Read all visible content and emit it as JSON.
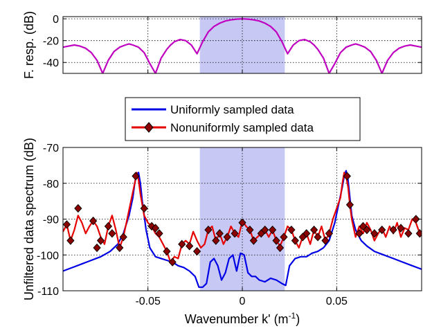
{
  "chart_data": [
    {
      "type": "line",
      "title": "",
      "xlabel": "",
      "ylabel": "F. resp. (dB)",
      "xlim": [
        -0.095,
        0.095
      ],
      "ylim": [
        -50,
        2
      ],
      "x_ticks": [
        -0.05,
        0,
        0.05
      ],
      "y_ticks": [
        0,
        -20,
        -40
      ],
      "y_tick_labels": [
        "0",
        "-20",
        "-40"
      ],
      "grid": true,
      "passband": [
        -0.0225,
        0.0225
      ],
      "colors": {
        "response": "#c000c0",
        "passband": "#c8c8f5"
      },
      "series": [
        {
          "description": "filter frequency response (sinc-like)",
          "x": [
            -0.095,
            -0.092,
            -0.089,
            -0.086,
            -0.083,
            -0.08,
            -0.077,
            -0.074,
            -0.071,
            -0.068,
            -0.065,
            -0.062,
            -0.06,
            -0.058,
            -0.055,
            -0.052,
            -0.049,
            -0.046,
            -0.043,
            -0.04,
            -0.038,
            -0.036,
            -0.033,
            -0.03,
            -0.027,
            -0.024,
            -0.021,
            -0.018,
            -0.015,
            -0.012,
            -0.009,
            -0.006,
            -0.003,
            0,
            0.003,
            0.006,
            0.009,
            0.012,
            0.015,
            0.018,
            0.021,
            0.024,
            0.027,
            0.03,
            0.033,
            0.036,
            0.038,
            0.04,
            0.043,
            0.046,
            0.049,
            0.052,
            0.055,
            0.058,
            0.06,
            0.062,
            0.065,
            0.068,
            0.071,
            0.074,
            0.077,
            0.08,
            0.083,
            0.086,
            0.089,
            0.092,
            0.095
          ],
          "y": [
            -26,
            -25,
            -24,
            -25,
            -27,
            -31,
            -38,
            -50,
            -38,
            -30,
            -26,
            -24,
            -23,
            -24,
            -26,
            -31,
            -41,
            -50,
            -36,
            -28,
            -24,
            -21,
            -19,
            -20,
            -24,
            -32,
            -21,
            -12,
            -7,
            -4,
            -2,
            -1,
            -0.3,
            0,
            -0.3,
            -1,
            -2,
            -4,
            -7,
            -12,
            -21,
            -32,
            -24,
            -20,
            -19,
            -21,
            -24,
            -28,
            -36,
            -50,
            -41,
            -31,
            -26,
            -24,
            -23,
            -24,
            -26,
            -30,
            -38,
            -50,
            -38,
            -31,
            -27,
            -25,
            -24,
            -25,
            -26
          ]
        }
      ]
    },
    {
      "type": "line",
      "title": "",
      "xlabel": "Wavenumber k' (m",
      "xlabel_sup": "-1",
      "xlabel_tail": ")",
      "ylabel": "Unfiltered data spectrum (dB)",
      "xlim": [
        -0.095,
        0.095
      ],
      "ylim": [
        -110,
        -70
      ],
      "x_ticks": [
        -0.05,
        0,
        0.05
      ],
      "x_tick_labels": [
        "-0.05",
        "0",
        "0.05"
      ],
      "y_ticks": [
        -70,
        -80,
        -90,
        -100,
        -110
      ],
      "y_tick_labels": [
        "-70",
        "-80",
        "-90",
        "-100",
        "-110"
      ],
      "grid": true,
      "legend_position": "top-center",
      "passband": [
        -0.0225,
        0.0225
      ],
      "colors": {
        "passband": "#c8c8f5"
      },
      "series": [
        {
          "name": "Uniformly sampled data",
          "color": "#0000e6",
          "x": [
            -0.095,
            -0.09,
            -0.085,
            -0.08,
            -0.075,
            -0.07,
            -0.066,
            -0.063,
            -0.06,
            -0.058,
            -0.057,
            -0.056,
            -0.055,
            -0.054,
            -0.053,
            -0.051,
            -0.049,
            -0.046,
            -0.043,
            -0.04,
            -0.037,
            -0.034,
            -0.031,
            -0.028,
            -0.025,
            -0.023,
            -0.021,
            -0.019,
            -0.017,
            -0.015,
            -0.013,
            -0.011,
            -0.009,
            -0.007,
            -0.005,
            -0.003,
            -0.001,
            0.001,
            0.003,
            0.005,
            0.007,
            0.009,
            0.012,
            0.015,
            0.018,
            0.021,
            0.023,
            0.025,
            0.028,
            0.031,
            0.034,
            0.037,
            0.04,
            0.043,
            0.046,
            0.049,
            0.051,
            0.053,
            0.054,
            0.055,
            0.056,
            0.057,
            0.058,
            0.06,
            0.063,
            0.066,
            0.07,
            0.075,
            0.08,
            0.085,
            0.09,
            0.095
          ],
          "y": [
            -104.5,
            -103.5,
            -102.5,
            -101.5,
            -100.5,
            -99,
            -97,
            -94,
            -89,
            -84,
            -80,
            -77.5,
            -77,
            -80,
            -85,
            -93,
            -98,
            -100.5,
            -101,
            -101.5,
            -102,
            -103,
            -103.5,
            -104.5,
            -106,
            -109,
            -109,
            -108,
            -102,
            -101,
            -103,
            -107,
            -105,
            -101,
            -100,
            -104.5,
            -99.5,
            -100,
            -105,
            -106,
            -106,
            -107,
            -107.5,
            -106.5,
            -107,
            -108,
            -108.5,
            -103,
            -101,
            -100.5,
            -100.5,
            -99.5,
            -99,
            -98,
            -96,
            -91,
            -86,
            -81,
            -78,
            -76.5,
            -79,
            -84,
            -89,
            -93,
            -96,
            -97.5,
            -99,
            -100,
            -101,
            -102,
            -103,
            -104
          ]
        },
        {
          "name": "Nonuniformly sampled data",
          "color": "#e60000",
          "marker_color": "#8b0000",
          "x": [
            -0.095,
            -0.093,
            -0.091,
            -0.089,
            -0.087,
            -0.085,
            -0.083,
            -0.081,
            -0.079,
            -0.077,
            -0.075,
            -0.073,
            -0.071,
            -0.069,
            -0.067,
            -0.065,
            -0.063,
            -0.061,
            -0.059,
            -0.057,
            -0.056,
            -0.055,
            -0.054,
            -0.053,
            -0.052,
            -0.05,
            -0.048,
            -0.046,
            -0.044,
            -0.042,
            -0.04,
            -0.038,
            -0.036,
            -0.034,
            -0.032,
            -0.03,
            -0.028,
            -0.026,
            -0.024,
            -0.022,
            -0.02,
            -0.018,
            -0.016,
            -0.014,
            -0.012,
            -0.01,
            -0.008,
            -0.006,
            -0.004,
            -0.002,
            0,
            0.002,
            0.004,
            0.006,
            0.008,
            0.01,
            0.012,
            0.014,
            0.016,
            0.018,
            0.02,
            0.022,
            0.024,
            0.026,
            0.028,
            0.03,
            0.032,
            0.034,
            0.036,
            0.038,
            0.04,
            0.042,
            0.044,
            0.046,
            0.048,
            0.05,
            0.052,
            0.053,
            0.054,
            0.055,
            0.056,
            0.057,
            0.058,
            0.06,
            0.062,
            0.064,
            0.066,
            0.068,
            0.07,
            0.072,
            0.074,
            0.076,
            0.078,
            0.08,
            0.082,
            0.084,
            0.086,
            0.088,
            0.09,
            0.092,
            0.094
          ],
          "y": [
            -93.5,
            -91.5,
            -96,
            -93,
            -89,
            -91,
            -94,
            -92,
            -90.5,
            -92,
            -95,
            -97,
            -92,
            -89,
            -93,
            -98,
            -95,
            -90,
            -85,
            -80,
            -77,
            -79,
            -83,
            -86,
            -89,
            -91,
            -92,
            -94,
            -95,
            -97,
            -99,
            -102,
            -100.5,
            -101,
            -97,
            -96,
            -97,
            -93.5,
            -96,
            -98,
            -97,
            -93,
            -92,
            -96,
            -94,
            -97,
            -95,
            -92,
            -94,
            -95,
            -90.5,
            -92,
            -93,
            -96,
            -95,
            -94,
            -93,
            -95,
            -93,
            -96,
            -97.5,
            -95,
            -92,
            -93,
            -96,
            -98,
            -95,
            -94,
            -97,
            -93,
            -95,
            -92,
            -96,
            -94,
            -90,
            -87,
            -84,
            -80,
            -77,
            -78,
            -81,
            -86,
            -90,
            -95,
            -92,
            -94,
            -91,
            -93,
            -96,
            -94,
            -92.5,
            -95,
            -92,
            -94,
            -91,
            -95,
            -92.5,
            -93,
            -90,
            -91,
            -94
          ],
          "markers": [
            [
              -0.093,
              -91.5
            ],
            [
              -0.091,
              -96
            ],
            [
              -0.087,
              -87
            ],
            [
              -0.079,
              -90.5
            ],
            [
              -0.077,
              -98
            ],
            [
              -0.075,
              -96
            ],
            [
              -0.071,
              -92
            ],
            [
              -0.069,
              -94
            ],
            [
              -0.065,
              -98
            ],
            [
              -0.063,
              -95
            ],
            [
              -0.0565,
              -78
            ],
            [
              -0.052,
              -87
            ],
            [
              -0.048,
              -92
            ],
            [
              -0.046,
              -92.5
            ],
            [
              -0.044,
              -94
            ],
            [
              -0.04,
              -99
            ],
            [
              -0.037,
              -102
            ],
            [
              -0.032,
              -97
            ],
            [
              -0.028,
              -97.5
            ],
            [
              -0.024,
              -99
            ],
            [
              -0.018,
              -93
            ],
            [
              -0.014,
              -96
            ],
            [
              -0.012,
              -94
            ],
            [
              -0.008,
              -95
            ],
            [
              -0.004,
              -94
            ],
            [
              0,
              -91
            ],
            [
              0.004,
              -93
            ],
            [
              0.006,
              -96
            ],
            [
              0.01,
              -94
            ],
            [
              0.012,
              -93
            ],
            [
              0.016,
              -93
            ],
            [
              0.018,
              -96
            ],
            [
              0.02,
              -98
            ],
            [
              0.022,
              -95
            ],
            [
              0.026,
              -93
            ],
            [
              0.028,
              -96
            ],
            [
              0.032,
              -95
            ],
            [
              0.034,
              -94
            ],
            [
              0.038,
              -93
            ],
            [
              0.04,
              -95
            ],
            [
              0.044,
              -96
            ],
            [
              0.046,
              -94
            ],
            [
              0.0555,
              -78
            ],
            [
              0.057,
              -86
            ],
            [
              0.062,
              -94
            ],
            [
              0.064,
              -92
            ],
            [
              0.066,
              -93
            ],
            [
              0.07,
              -94
            ],
            [
              0.074,
              -93
            ],
            [
              0.08,
              -93
            ],
            [
              0.084,
              -92.5
            ],
            [
              0.088,
              -94
            ],
            [
              0.092,
              -90
            ],
            [
              0.094,
              -94
            ]
          ]
        }
      ]
    }
  ]
}
